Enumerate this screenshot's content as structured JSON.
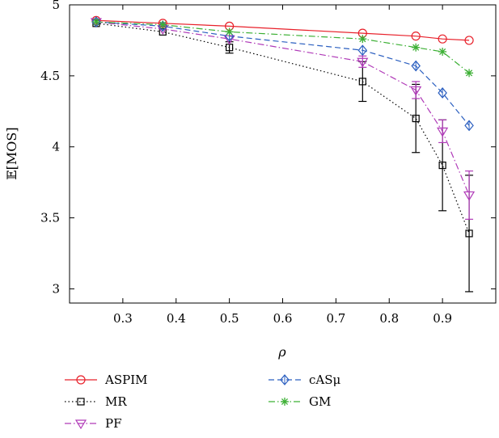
{
  "chart_data": {
    "type": "line",
    "title": "",
    "xlabel": "ρ",
    "ylabel": "𝔼[MOS]",
    "xlim": [
      0.2,
      1.0
    ],
    "ylim": [
      2.9,
      5.0
    ],
    "xticks": [
      0.3,
      0.4,
      0.5,
      0.6,
      0.7,
      0.8,
      0.9
    ],
    "xtick_labels": [
      "0.3",
      "0.4",
      "0.5",
      "0.6",
      "0.7",
      "0.8",
      "0.9"
    ],
    "yticks": [
      3,
      3.5,
      4,
      4.5,
      5
    ],
    "ytick_labels": [
      "3",
      "3.5",
      "4",
      "4.5",
      "5"
    ],
    "grid": false,
    "legend_position": "below",
    "x": [
      0.25,
      0.375,
      0.5,
      0.75,
      0.85,
      0.9,
      0.95
    ],
    "series": [
      {
        "name": "ASPIM",
        "color": "#e8202a",
        "dash": "solid",
        "marker": "circle",
        "values": [
          4.89,
          4.87,
          4.85,
          4.8,
          4.78,
          4.76,
          4.75
        ]
      },
      {
        "name": "MR",
        "color": "#000000",
        "dash": "dotted",
        "marker": "square",
        "values": [
          4.87,
          4.81,
          4.7,
          4.46,
          4.2,
          3.87,
          3.39
        ],
        "error": [
          0.01,
          0.02,
          0.04,
          0.14,
          0.24,
          0.32,
          0.41
        ]
      },
      {
        "name": "PF",
        "color": "#b03ab8",
        "dash": "dashdot",
        "marker": "triangle-down",
        "values": [
          4.88,
          4.83,
          4.76,
          4.6,
          4.4,
          4.11,
          3.66
        ],
        "error": [
          0.01,
          0.01,
          0.02,
          0.04,
          0.06,
          0.08,
          0.17
        ]
      },
      {
        "name": "cASμ",
        "color": "#2b5fc0",
        "dash": "dashed",
        "marker": "diamond",
        "values": [
          4.88,
          4.85,
          4.78,
          4.68,
          4.57,
          4.38,
          4.15
        ]
      },
      {
        "name": "GM",
        "color": "#3cb034",
        "dash": "dashdot",
        "marker": "star",
        "values": [
          4.88,
          4.86,
          4.81,
          4.76,
          4.7,
          4.67,
          4.52
        ]
      }
    ],
    "legend_order": [
      0,
      3,
      1,
      4,
      2
    ]
  }
}
